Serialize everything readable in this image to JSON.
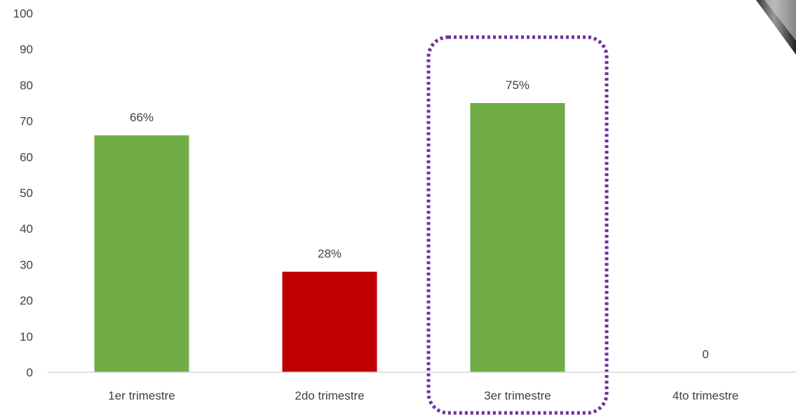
{
  "chart_data": {
    "type": "bar",
    "categories": [
      "1er trimestre",
      "2do trimestre",
      "3er trimestre",
      "4to trimestre"
    ],
    "values": [
      66,
      28,
      75,
      0
    ],
    "data_labels": [
      "66%",
      "28%",
      "75%",
      "0"
    ],
    "bar_colors": [
      "#70ad47",
      "#c00000",
      "#70ad47",
      "#70ad47"
    ],
    "yticks": [
      0,
      10,
      20,
      30,
      40,
      50,
      60,
      70,
      80,
      90,
      100
    ],
    "ylim": [
      0,
      100
    ],
    "title": "",
    "xlabel": "",
    "ylabel": "",
    "grid": false,
    "highlight": {
      "category": "3er trimestre",
      "style": "dotted-rounded-rectangle",
      "color": "#7030a0"
    }
  },
  "decoration": {
    "corner_shape": "pen-tip",
    "color": "#555555"
  }
}
